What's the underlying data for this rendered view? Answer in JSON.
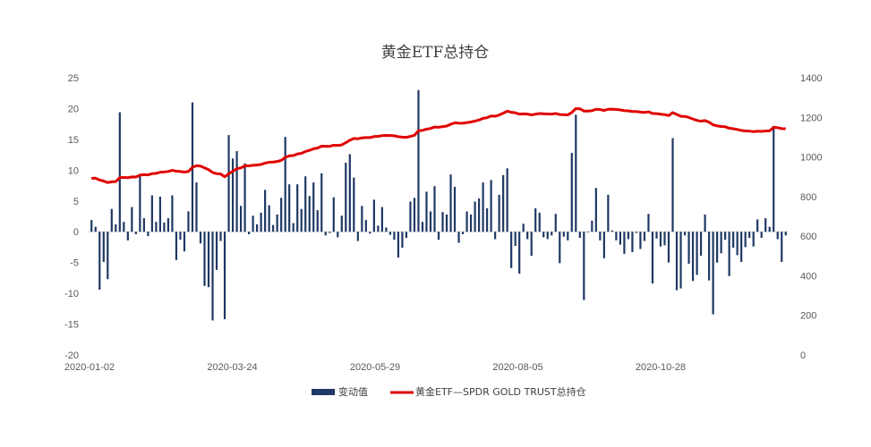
{
  "chart_data": {
    "type": "bar+line",
    "title": "黄金ETF总持仓",
    "x_tick_labels": [
      "2020-01-02",
      "2020-03-24",
      "2020-05-29",
      "2020-08-05",
      "2020-10-28"
    ],
    "left_axis": {
      "ylim": [
        -20,
        25
      ],
      "ticks": [
        "25",
        "20",
        "15",
        "10",
        "5",
        "0",
        "-5",
        "-10",
        "-15",
        "-20"
      ]
    },
    "right_axis": {
      "ylim": [
        0,
        1400
      ],
      "ticks": [
        "1400",
        "1200",
        "1000",
        "800",
        "600",
        "400",
        "200",
        "0"
      ]
    },
    "series": [
      {
        "name": "变动值",
        "type": "bar",
        "axis": "left",
        "color": "#1f3864",
        "values": [
          1.9,
          0.8,
          -9.4,
          -4.9,
          -7.7,
          3.7,
          1.2,
          19.4,
          1.6,
          -1.4,
          4.0,
          -0.4,
          9.3,
          2.2,
          -0.7,
          5.9,
          1.6,
          5.7,
          1.5,
          2.2,
          5.9,
          -4.6,
          -1.3,
          -3.2,
          3.3,
          21.0,
          8.0,
          -1.9,
          -8.8,
          -9.0,
          -14.4,
          -6.2,
          -1.5,
          -14.2,
          15.7,
          11.9,
          13.1,
          4.2,
          11.1,
          -0.4,
          2.6,
          1.2,
          3.1,
          6.8,
          4.3,
          1.1,
          2.8,
          5.5,
          15.4,
          7.7,
          1.4,
          7.7,
          3.7,
          9.0,
          5.8,
          8.0,
          3.5,
          9.5,
          -0.6,
          -0.2,
          5.6,
          -0.9,
          2.6,
          11.2,
          12.6,
          8.8,
          -1.5,
          4.2,
          1.9,
          -0.3,
          5.2,
          1.0,
          4.0,
          0.7,
          -0.5,
          -1.3,
          -4.2,
          -2.6,
          -1.0,
          4.9,
          5.5,
          23.0,
          1.6,
          6.5,
          3.3,
          7.4,
          -1.3,
          3.2,
          2.8,
          9.3,
          7.3,
          -1.8,
          -0.4,
          3.3,
          2.8,
          4.9,
          5.4,
          8.0,
          3.8,
          8.4,
          -1.2,
          6.0,
          9.2,
          10.3,
          -5.9,
          -2.3,
          -6.8,
          1.3,
          -1.2,
          -3.9,
          3.8,
          3.1,
          -0.9,
          -1.2,
          -0.6,
          2.9,
          -5.1,
          -0.8,
          -1.4,
          12.8,
          19.0,
          -1.0,
          -11.1,
          -0.1,
          1.8,
          7.1,
          -1.4,
          -4.3,
          6.0,
          0.2,
          -1.4,
          -2.1,
          -3.6,
          -1.2,
          -3.3,
          -0.2,
          -2.8,
          -1.5,
          2.9,
          -8.4,
          -1.1,
          -2.4,
          -2.2,
          -5.0,
          15.2,
          -9.5,
          -9.2,
          -0.6,
          -5.2,
          -8.0,
          -7.0,
          -3.9,
          2.8,
          -7.9,
          -13.4,
          -5.0,
          -3.5,
          -1.3,
          -7.2,
          -2.6,
          -3.8,
          -4.9,
          -2.5,
          -1.0,
          -2.4,
          2.0,
          -1.0,
          2.2,
          0.8,
          17.2,
          -1.2,
          -4.9,
          -0.6
        ]
      },
      {
        "name": "黄金ETF—SPDR GOLD TRUST总持仓",
        "type": "line",
        "axis": "right",
        "color": "#e00000",
        "values": [
          892.0,
          892.8,
          883.4,
          878.5,
          870.8,
          874.5,
          875.7,
          895.1,
          896.7,
          895.3,
          899.3,
          898.9,
          908.2,
          910.4,
          909.7,
          915.6,
          917.2,
          922.9,
          924.4,
          926.6,
          932.5,
          927.9,
          926.6,
          923.4,
          926.7,
          947.7,
          955.7,
          953.8,
          945.0,
          936.0,
          921.6,
          915.4,
          913.9,
          899.7,
          915.4,
          927.3,
          940.4,
          944.6,
          955.7,
          955.3,
          957.9,
          959.1,
          962.2,
          969.0,
          973.3,
          974.4,
          977.2,
          982.7,
          998.1,
          1005.8,
          1007.2,
          1014.9,
          1018.6,
          1027.6,
          1033.4,
          1041.4,
          1044.9,
          1054.4,
          1053.8,
          1053.6,
          1059.2,
          1058.3,
          1060.9,
          1072.1,
          1084.7,
          1093.5,
          1092.0,
          1096.2,
          1098.1,
          1097.8,
          1103.0,
          1104.0,
          1108.0,
          1108.7,
          1108.2,
          1106.9,
          1102.7,
          1100.1,
          1099.1,
          1104.0,
          1109.5,
          1132.5,
          1134.1,
          1140.6,
          1143.9,
          1151.3,
          1150.0,
          1153.2,
          1156.0,
          1165.3,
          1172.6,
          1170.8,
          1170.4,
          1173.7,
          1176.5,
          1181.4,
          1186.8,
          1194.8,
          1198.6,
          1207.0,
          1205.8,
          1211.8,
          1221.0,
          1231.3,
          1225.4,
          1223.1,
          1216.3,
          1217.6,
          1216.4,
          1212.5,
          1216.3,
          1219.4,
          1218.5,
          1217.3,
          1216.7,
          1219.6,
          1214.5,
          1213.7,
          1212.3,
          1225.1,
          1244.1,
          1243.1,
          1232.0,
          1231.9,
          1233.7,
          1240.8,
          1239.4,
          1235.1,
          1241.1,
          1241.3,
          1239.9,
          1237.8,
          1234.2,
          1233.0,
          1229.7,
          1229.5,
          1226.7,
          1225.2,
          1228.1,
          1219.7,
          1218.6,
          1216.2,
          1214.0,
          1209.0,
          1224.2,
          1214.7,
          1205.5,
          1204.9,
          1199.7,
          1191.7,
          1184.7,
          1180.8,
          1183.6,
          1175.7,
          1162.3,
          1157.3,
          1153.8,
          1152.5,
          1145.3,
          1142.7,
          1138.9,
          1134.0,
          1131.5,
          1130.5,
          1128.1,
          1130.1,
          1129.1,
          1131.3,
          1132.1,
          1149.3,
          1148.1,
          1143.2,
          1142.6
        ]
      }
    ],
    "legend_position": "bottom-center"
  }
}
